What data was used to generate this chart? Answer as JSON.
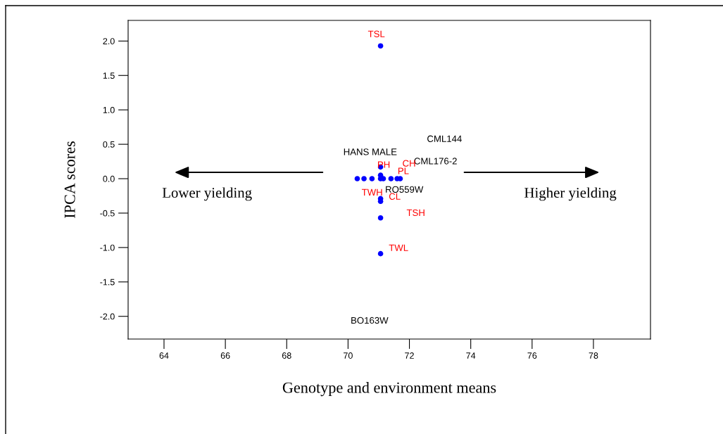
{
  "chart_data": {
    "type": "scatter",
    "xlabel": "Genotype and environment means",
    "ylabel": "IPCA scores",
    "xlim": [
      62.83,
      79.86
    ],
    "xticks": [
      64,
      66,
      68,
      70,
      72,
      74,
      76,
      78
    ],
    "ylim": [
      -2.33,
      2.3
    ],
    "yticks": [
      {
        "value": -2,
        "label": "-2.0"
      },
      {
        "value": -1.5,
        "label": "-1.5"
      },
      {
        "value": -1,
        "label": "-1.0"
      },
      {
        "value": -0.5,
        "label": "-0.5"
      },
      {
        "value": 0,
        "label": "0.0"
      },
      {
        "value": 0.5,
        "label": "0.5"
      },
      {
        "value": 1,
        "label": "1.0"
      },
      {
        "value": 1.5,
        "label": "1.5"
      },
      {
        "value": 2,
        "label": "2.0"
      }
    ],
    "marker": "circle",
    "grid": false,
    "legend": false,
    "series": [
      {
        "color": "#0000ff",
        "x": [
          70.3,
          70.52,
          70.78,
          71.06,
          71.15,
          71.4,
          71.6,
          71.7,
          71.06,
          71.06,
          71.06,
          71.06,
          71.06,
          71.06,
          71.06
        ],
        "values": [
          0,
          0,
          0,
          0,
          0,
          0,
          0,
          0,
          0.17,
          0.05,
          -0.29,
          -0.33,
          -0.57,
          -1.09,
          1.93
        ]
      }
    ],
    "annotations": [
      "TSL",
      "CML144",
      "HANS MALE",
      "CML176-2",
      "RO559W",
      "BO163W",
      "PH",
      "CH",
      "PL",
      "TWH",
      "CL",
      "TSH",
      "TWL",
      "Lower yielding",
      "Higher yielding"
    ]
  }
}
